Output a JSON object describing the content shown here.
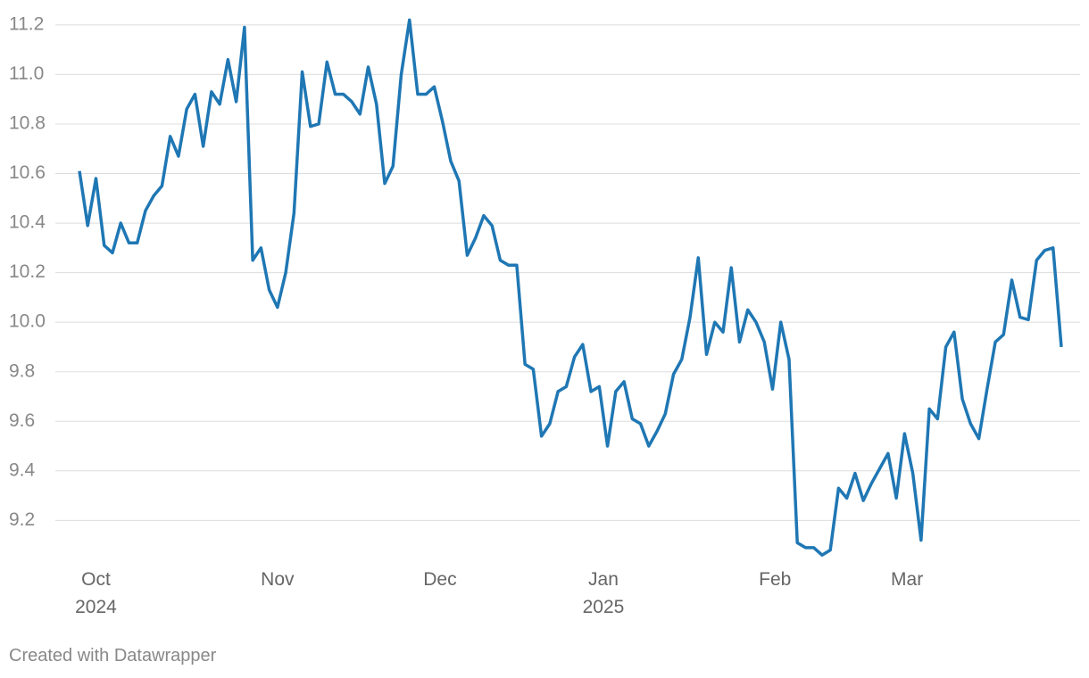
{
  "chart_data": {
    "type": "line",
    "footer": "Created with Datawrapper",
    "series": [
      {
        "color": "#1f77b4",
        "values": [
          10.61,
          10.39,
          10.58,
          10.31,
          10.28,
          10.4,
          10.32,
          10.32,
          10.45,
          10.51,
          10.55,
          10.75,
          10.67,
          10.86,
          10.92,
          10.71,
          10.93,
          10.88,
          11.06,
          10.89,
          11.19,
          10.25,
          10.3,
          10.13,
          10.06,
          10.2,
          10.44,
          11.01,
          10.79,
          10.8,
          11.05,
          10.92,
          10.92,
          10.89,
          10.84,
          11.03,
          10.88,
          10.56,
          10.63,
          11.0,
          11.22,
          10.92,
          10.92,
          10.95,
          10.81,
          10.65,
          10.57,
          10.27,
          10.34,
          10.43,
          10.39,
          10.25,
          10.23,
          10.23,
          9.83,
          9.81,
          9.54,
          9.59,
          9.72,
          9.74,
          9.86,
          9.91,
          9.72,
          9.74,
          9.5,
          9.72,
          9.76,
          9.61,
          9.59,
          9.5,
          9.56,
          9.63,
          9.79,
          9.85,
          10.02,
          10.26,
          9.87,
          10.0,
          9.96,
          10.22,
          9.92,
          10.05,
          10.0,
          9.92,
          9.73,
          10.0,
          9.85,
          9.11,
          9.09,
          9.09,
          9.06,
          9.08,
          9.33,
          9.29,
          9.39,
          9.28,
          9.35,
          9.41,
          9.47,
          9.29,
          9.55,
          9.39,
          9.12,
          9.65,
          9.61,
          9.9,
          9.96,
          9.69,
          9.59,
          9.53,
          9.73,
          9.92,
          9.95,
          10.17,
          10.02,
          10.01,
          10.25,
          10.29,
          10.3,
          9.9
        ]
      }
    ],
    "xlim": [
      0,
      119
    ],
    "xticks": [
      {
        "value": 2,
        "label": "Oct\n2024"
      },
      {
        "value": 24,
        "label": "Nov"
      },
      {
        "value": 43.7,
        "label": "Dec"
      },
      {
        "value": 63.5,
        "label": "Jan\n2025"
      },
      {
        "value": 84.3,
        "label": "Feb"
      },
      {
        "value": 100.3,
        "label": "Mar"
      }
    ],
    "ylim": [
      9.05,
      11.25
    ],
    "yticks": [
      9.2,
      9.4,
      9.6,
      9.8,
      {
        "value": 10,
        "label": "10.0"
      },
      10.2,
      10.4,
      10.6,
      10.8,
      {
        "value": 11,
        "label": "11.0"
      },
      11.2
    ],
    "grid": true
  }
}
